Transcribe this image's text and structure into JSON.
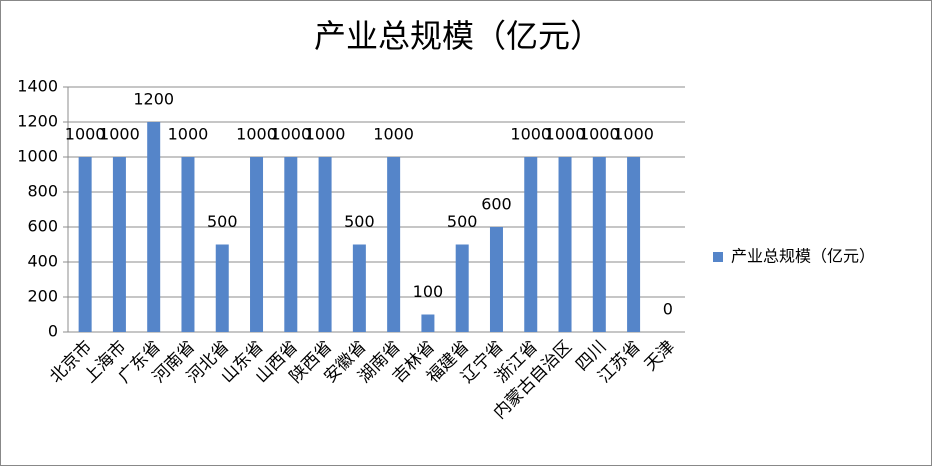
{
  "chart_data": {
    "type": "bar",
    "title": "产业总规模（亿元）",
    "categories": [
      "北京市",
      "上海市",
      "广东省",
      "河南省",
      "河北省",
      "山东省",
      "山西省",
      "陕西省",
      "安徽省",
      "湖南省",
      "吉林省",
      "福建省",
      "辽宁省",
      "浙江省",
      "内蒙古自治区",
      "四川",
      "江苏省",
      "天津"
    ],
    "series": [
      {
        "name": "产业总规模（亿元）",
        "color": "#5585c9",
        "values": [
          1000,
          1000,
          1200,
          1000,
          500,
          1000,
          1000,
          1000,
          500,
          1000,
          100,
          500,
          600,
          1000,
          1000,
          1000,
          1000,
          0
        ]
      }
    ],
    "ylim": [
      0,
      1400
    ],
    "yticks": [
      0,
      200,
      400,
      600,
      800,
      1000,
      1200,
      1400
    ],
    "grid": true,
    "legend": "right"
  }
}
